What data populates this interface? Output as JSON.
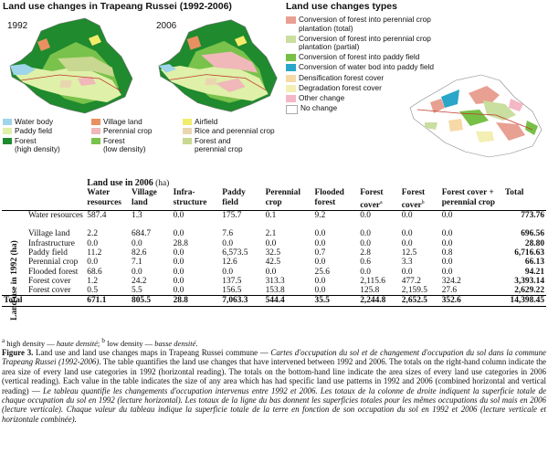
{
  "maps": {
    "left_title": "Land use changes in Trapeang Russei (1992-2006)",
    "year_a": "1992",
    "year_b": "2006",
    "right_title": "Land use changes types"
  },
  "legend_left": {
    "col1": [
      {
        "label": "Water body",
        "color": "#9fd5ea"
      },
      {
        "label": "Paddy field",
        "color": "#dff0a8"
      },
      {
        "label": "Forest\n(high density)",
        "color": "#1f8a2e"
      }
    ],
    "col2": [
      {
        "label": "Village land",
        "color": "#e99060"
      },
      {
        "label": "Perennial crop",
        "color": "#f0b8b8"
      },
      {
        "label": "Forest\n(low density)",
        "color": "#79c24b"
      }
    ],
    "col3": [
      {
        "label": "Airfield",
        "color": "#f2ec6a"
      },
      {
        "label": "Rice and perennial crop",
        "color": "#e9d6b0"
      },
      {
        "label": "Forest and\nperennial crop",
        "color": "#c8d890"
      }
    ]
  },
  "legend_right": [
    {
      "label": "Conversion of forest into perennial crop plantation (total)",
      "color": "#e8a092"
    },
    {
      "label": "Conversion of forest into perennial crop plantation (partial)",
      "color": "#c9df9f"
    },
    {
      "label": "Conversion of forest into paddy field",
      "color": "#76c045"
    },
    {
      "label": "Conversion of water bod into paddy field",
      "color": "#2aa6c9"
    },
    {
      "label": "Densification forest cover",
      "color": "#f6d9a6"
    },
    {
      "label": "Degradation forest cover",
      "color": "#f3efb3"
    },
    {
      "label": "Other change",
      "color": "#f4b7c6"
    },
    {
      "label": "No change",
      "color": "#ffffff"
    }
  ],
  "table": {
    "title_2006": "Land use in 2006",
    "title_2006_unit": "(ha)",
    "row_group_label": "Land use in 1992 (ha)",
    "columns": [
      "Water resources",
      "Village land",
      "Infra-structure",
      "Paddy field",
      "Perennial crop",
      "Flooded forest",
      "Forest cover",
      "Forest cover",
      "Forest cover + perennial crop",
      "Total"
    ],
    "column_sups": [
      "",
      "",
      "",
      "",
      "",
      "",
      "a",
      "b",
      "",
      ""
    ],
    "rows": [
      {
        "label": "Water resources",
        "values": [
          "587.4",
          "1.3",
          "0.0",
          "175.7",
          "0.1",
          "9.2",
          "0.0",
          "0.0",
          "0.0",
          "773.76"
        ]
      },
      {
        "label": "Village land",
        "values": [
          "2.2",
          "684.7",
          "0.0",
          "7.6",
          "2.1",
          "0.0",
          "0.0",
          "0.0",
          "0.0",
          "696.56"
        ]
      },
      {
        "label": "Infrastructure",
        "values": [
          "0.0",
          "0.0",
          "28.8",
          "0.0",
          "0.0",
          "0.0",
          "0.0",
          "0.0",
          "0.0",
          "28.80"
        ]
      },
      {
        "label": "Paddy field",
        "values": [
          "11.2",
          "82.6",
          "0.0",
          "6,573.5",
          "32.5",
          "0.7",
          "2.8",
          "12.5",
          "0.8",
          "6,716.63"
        ]
      },
      {
        "label": "Perennial crop",
        "values": [
          "0.0",
          "7.1",
          "0.0",
          "12.6",
          "42.5",
          "0.0",
          "0.6",
          "3.3",
          "0.0",
          "66.13"
        ]
      },
      {
        "label": "Flooded forest",
        "values": [
          "68.6",
          "0.0",
          "0.0",
          "0.0",
          "0.0",
          "25.6",
          "0.0",
          "0.0",
          "0.0",
          "94.21"
        ]
      },
      {
        "label": "Forest cover",
        "values": [
          "1.2",
          "24.2",
          "0.0",
          "137.5",
          "313.3",
          "0.0",
          "2,115.6",
          "477.2",
          "324.2",
          "3,393.14"
        ]
      },
      {
        "label": "Forest cover",
        "values": [
          "0.5",
          "5.5",
          "0.0",
          "156.5",
          "153.8",
          "0.0",
          "125.8",
          "2,159.5",
          "27.6",
          "2,629.22"
        ]
      }
    ],
    "total_row": {
      "label": "Total",
      "values": [
        "671.1",
        "805.5",
        "28.8",
        "7,063.3",
        "544.4",
        "35.5",
        "2,244.8",
        "2,652.5",
        "352.6",
        "14,398.45"
      ]
    }
  },
  "footnote": {
    "a": "a",
    "a_text": " high density — ",
    "a_fr": "haute densité",
    "sep": "; ",
    "b": "b",
    "b_text": " low density — ",
    "b_fr": "basse densité",
    "end": "."
  },
  "caption": {
    "label": "Figure 3.",
    "en1": " Land use and land use changes maps in Trapeang Russei commune — ",
    "fr1": "Cartes d'occupation du sol et de changement d'occupation du sol dans la commune Trapeang Russei (1992-2006)",
    "en2": ". The table quantifies the land use changes that have intervened between 1992 and 2006. The totals on the right-hand column indicate the area size of every land use categories in 1992 (horizontal reading). The totals on the bottom-hand line indicate the area sizes of every land use categories in 2006 (vertical reading). Each value in the table indicates the size of any area which has had specific land use patterns in 1992 and 2006 (combined horizontal and vertical reading) — ",
    "fr2": "Le tableau quantifie les changements d'occupation intervenus entre 1992 et 2006. Les totaux de la colonne de droite indiquent la superficie totale de chaque occupation du sol en 1992 (lecture horizontal). Les totaux de la ligne du bas donnent les superficies totales pour les mêmes occupations du sol mais en 2006 (lecture verticale). Chaque valeur du tableau indique la superficie totale de la terre en fonction de son occupation du sol en 1992 et 2006 (lecture verticale et horizontale combinée).",
    "end": ""
  }
}
